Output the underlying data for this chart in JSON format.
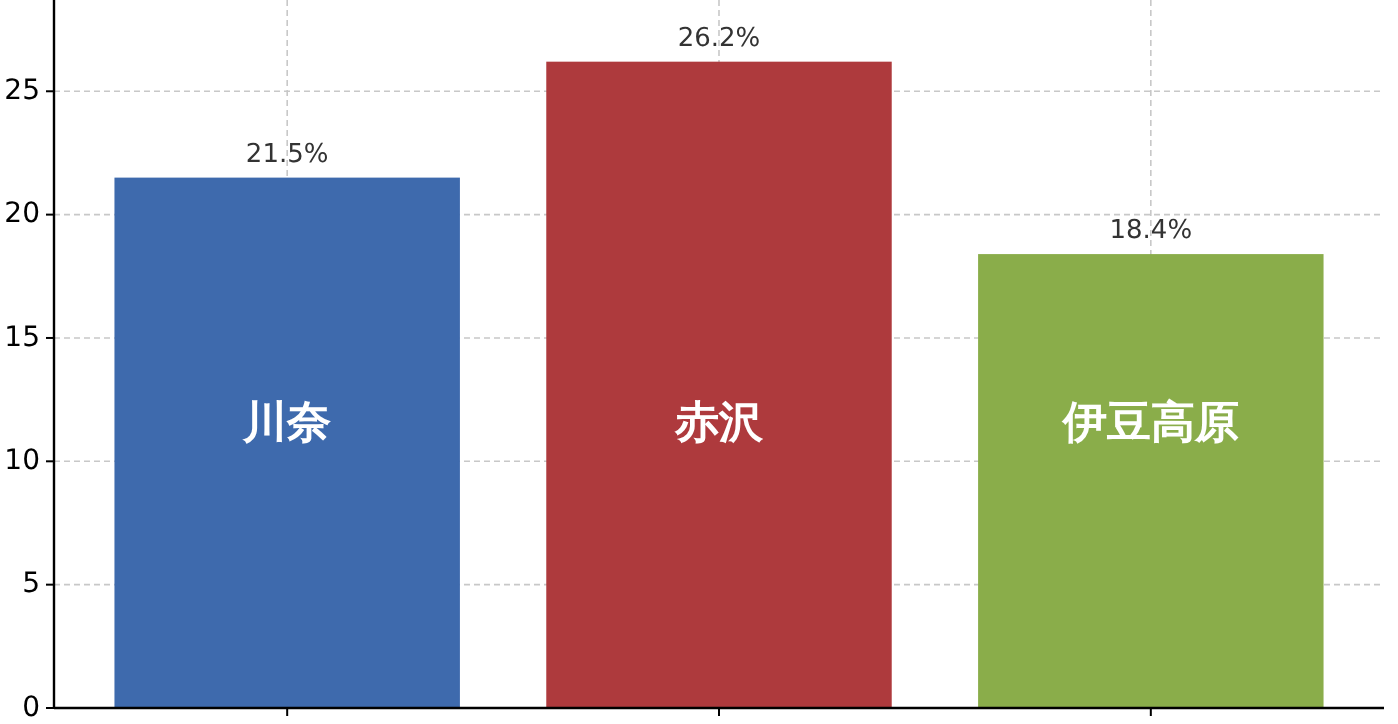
{
  "chart_data": {
    "type": "bar",
    "categories": [
      "川奈",
      "赤沢",
      "伊豆高原"
    ],
    "values": [
      21.5,
      26.2,
      18.4
    ],
    "value_labels": [
      "21.5%",
      "26.2%",
      "18.4%"
    ],
    "colors": [
      "#3e6aad",
      "#ae3a3d",
      "#8aad4a"
    ],
    "ylim": [
      0,
      28.7
    ],
    "yticks": [
      0,
      5,
      10,
      15,
      20,
      25
    ],
    "grid": true
  }
}
